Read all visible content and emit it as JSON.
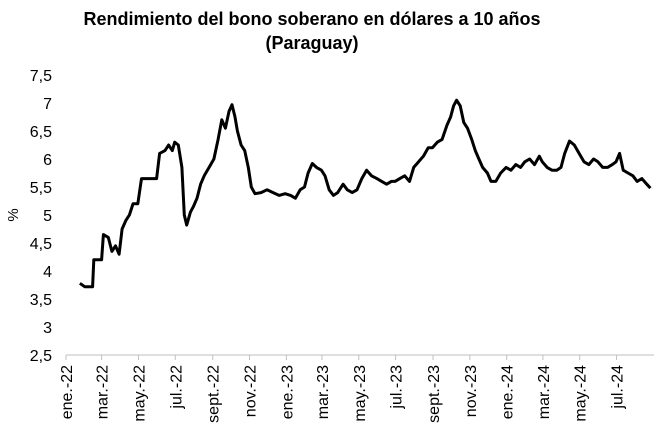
{
  "chart_data": {
    "type": "line",
    "title": "Rendimiento del bono soberano en dólares a 10 años",
    "subtitle": "(Paraguay)",
    "xlabel": "",
    "ylabel": "%",
    "ylim": [
      2.5,
      7.5
    ],
    "yticks": [
      "2,5",
      "3",
      "3,5",
      "4",
      "4,5",
      "5",
      "5,5",
      "6",
      "6,5",
      "7",
      "7,5"
    ],
    "xticks": [
      "ene.-22",
      "mar.-22",
      "may.-22",
      "jul.-22",
      "sept.-22",
      "nov.-22",
      "ene.-23",
      "mar.-23",
      "may.-23",
      "jul.-23",
      "sept.-23",
      "nov.-23",
      "ene.-24",
      "mar.-24",
      "may.-24",
      "jul.-24"
    ],
    "grid": false,
    "legend": "none",
    "line_color": "#000000",
    "series": [
      {
        "values": [
          [
            "2022-01-24",
            3.78
          ],
          [
            "2022-02-01",
            3.72
          ],
          [
            "2022-02-14",
            3.72
          ],
          [
            "2022-02-16",
            4.2
          ],
          [
            "2022-03-01",
            4.2
          ],
          [
            "2022-03-04",
            4.65
          ],
          [
            "2022-03-12",
            4.6
          ],
          [
            "2022-03-18",
            4.35
          ],
          [
            "2022-03-24",
            4.45
          ],
          [
            "2022-03-30",
            4.3
          ],
          [
            "2022-04-04",
            4.75
          ],
          [
            "2022-04-10",
            4.9
          ],
          [
            "2022-04-16",
            5.0
          ],
          [
            "2022-04-22",
            5.2
          ],
          [
            "2022-04-30",
            5.2
          ],
          [
            "2022-05-06",
            5.65
          ],
          [
            "2022-05-31",
            5.65
          ],
          [
            "2022-06-05",
            6.1
          ],
          [
            "2022-06-14",
            6.15
          ],
          [
            "2022-06-20",
            6.25
          ],
          [
            "2022-06-26",
            6.15
          ],
          [
            "2022-06-30",
            6.3
          ],
          [
            "2022-07-06",
            6.25
          ],
          [
            "2022-07-12",
            5.85
          ],
          [
            "2022-07-16",
            5.0
          ],
          [
            "2022-07-20",
            4.82
          ],
          [
            "2022-07-26",
            5.05
          ],
          [
            "2022-07-31",
            5.15
          ],
          [
            "2022-08-06",
            5.3
          ],
          [
            "2022-08-12",
            5.55
          ],
          [
            "2022-08-18",
            5.7
          ],
          [
            "2022-08-26",
            5.85
          ],
          [
            "2022-09-03",
            6.0
          ],
          [
            "2022-09-10",
            6.35
          ],
          [
            "2022-09-16",
            6.7
          ],
          [
            "2022-09-22",
            6.55
          ],
          [
            "2022-09-28",
            6.85
          ],
          [
            "2022-10-03",
            6.97
          ],
          [
            "2022-10-08",
            6.75
          ],
          [
            "2022-10-12",
            6.5
          ],
          [
            "2022-10-18",
            6.25
          ],
          [
            "2022-10-24",
            6.15
          ],
          [
            "2022-10-30",
            5.85
          ],
          [
            "2022-11-04",
            5.5
          ],
          [
            "2022-11-10",
            5.38
          ],
          [
            "2022-11-20",
            5.4
          ],
          [
            "2022-11-30",
            5.45
          ],
          [
            "2022-12-10",
            5.4
          ],
          [
            "2022-12-20",
            5.35
          ],
          [
            "2022-12-30",
            5.38
          ],
          [
            "2023-01-08",
            5.35
          ],
          [
            "2023-01-16",
            5.3
          ],
          [
            "2023-01-24",
            5.45
          ],
          [
            "2023-01-31",
            5.5
          ],
          [
            "2023-02-06",
            5.75
          ],
          [
            "2023-02-13",
            5.92
          ],
          [
            "2023-02-20",
            5.85
          ],
          [
            "2023-02-28",
            5.8
          ],
          [
            "2023-03-06",
            5.7
          ],
          [
            "2023-03-13",
            5.45
          ],
          [
            "2023-03-20",
            5.35
          ],
          [
            "2023-03-27",
            5.4
          ],
          [
            "2023-04-05",
            5.55
          ],
          [
            "2023-04-12",
            5.45
          ],
          [
            "2023-04-20",
            5.4
          ],
          [
            "2023-04-28",
            5.45
          ],
          [
            "2023-05-06",
            5.65
          ],
          [
            "2023-05-14",
            5.8
          ],
          [
            "2023-05-22",
            5.7
          ],
          [
            "2023-05-31",
            5.65
          ],
          [
            "2023-06-08",
            5.6
          ],
          [
            "2023-06-16",
            5.55
          ],
          [
            "2023-06-24",
            5.6
          ],
          [
            "2023-06-30",
            5.6
          ],
          [
            "2023-07-08",
            5.65
          ],
          [
            "2023-07-16",
            5.7
          ],
          [
            "2023-07-24",
            5.6
          ],
          [
            "2023-07-31",
            5.85
          ],
          [
            "2023-08-08",
            5.95
          ],
          [
            "2023-08-16",
            6.05
          ],
          [
            "2023-08-24",
            6.2
          ],
          [
            "2023-08-31",
            6.2
          ],
          [
            "2023-09-08",
            6.3
          ],
          [
            "2023-09-16",
            6.35
          ],
          [
            "2023-09-24",
            6.6
          ],
          [
            "2023-09-30",
            6.75
          ],
          [
            "2023-10-05",
            6.95
          ],
          [
            "2023-10-10",
            7.05
          ],
          [
            "2023-10-16",
            6.95
          ],
          [
            "2023-10-22",
            6.65
          ],
          [
            "2023-10-28",
            6.55
          ],
          [
            "2023-11-04",
            6.35
          ],
          [
            "2023-11-10",
            6.15
          ],
          [
            "2023-11-16",
            6.0
          ],
          [
            "2023-11-22",
            5.85
          ],
          [
            "2023-11-30",
            5.75
          ],
          [
            "2023-12-06",
            5.6
          ],
          [
            "2023-12-14",
            5.6
          ],
          [
            "2023-12-22",
            5.75
          ],
          [
            "2023-12-31",
            5.85
          ],
          [
            "2024-01-08",
            5.8
          ],
          [
            "2024-01-16",
            5.9
          ],
          [
            "2024-01-24",
            5.85
          ],
          [
            "2024-01-31",
            5.95
          ],
          [
            "2024-02-08",
            6.0
          ],
          [
            "2024-02-16",
            5.9
          ],
          [
            "2024-02-24",
            6.05
          ],
          [
            "2024-02-29",
            5.95
          ],
          [
            "2024-03-08",
            5.85
          ],
          [
            "2024-03-16",
            5.8
          ],
          [
            "2024-03-24",
            5.8
          ],
          [
            "2024-03-31",
            5.85
          ],
          [
            "2024-04-06",
            6.1
          ],
          [
            "2024-04-14",
            6.32
          ],
          [
            "2024-04-22",
            6.25
          ],
          [
            "2024-04-30",
            6.1
          ],
          [
            "2024-05-08",
            5.95
          ],
          [
            "2024-05-16",
            5.9
          ],
          [
            "2024-05-24",
            6.0
          ],
          [
            "2024-05-31",
            5.95
          ],
          [
            "2024-06-08",
            5.85
          ],
          [
            "2024-06-16",
            5.85
          ],
          [
            "2024-06-24",
            5.9
          ],
          [
            "2024-06-30",
            5.95
          ],
          [
            "2024-07-06",
            6.1
          ],
          [
            "2024-07-12",
            5.8
          ],
          [
            "2024-07-20",
            5.75
          ],
          [
            "2024-07-28",
            5.7
          ],
          [
            "2024-08-04",
            5.6
          ],
          [
            "2024-08-12",
            5.65
          ],
          [
            "2024-08-20",
            5.55
          ],
          [
            "2024-08-26",
            5.48
          ]
        ]
      }
    ]
  }
}
